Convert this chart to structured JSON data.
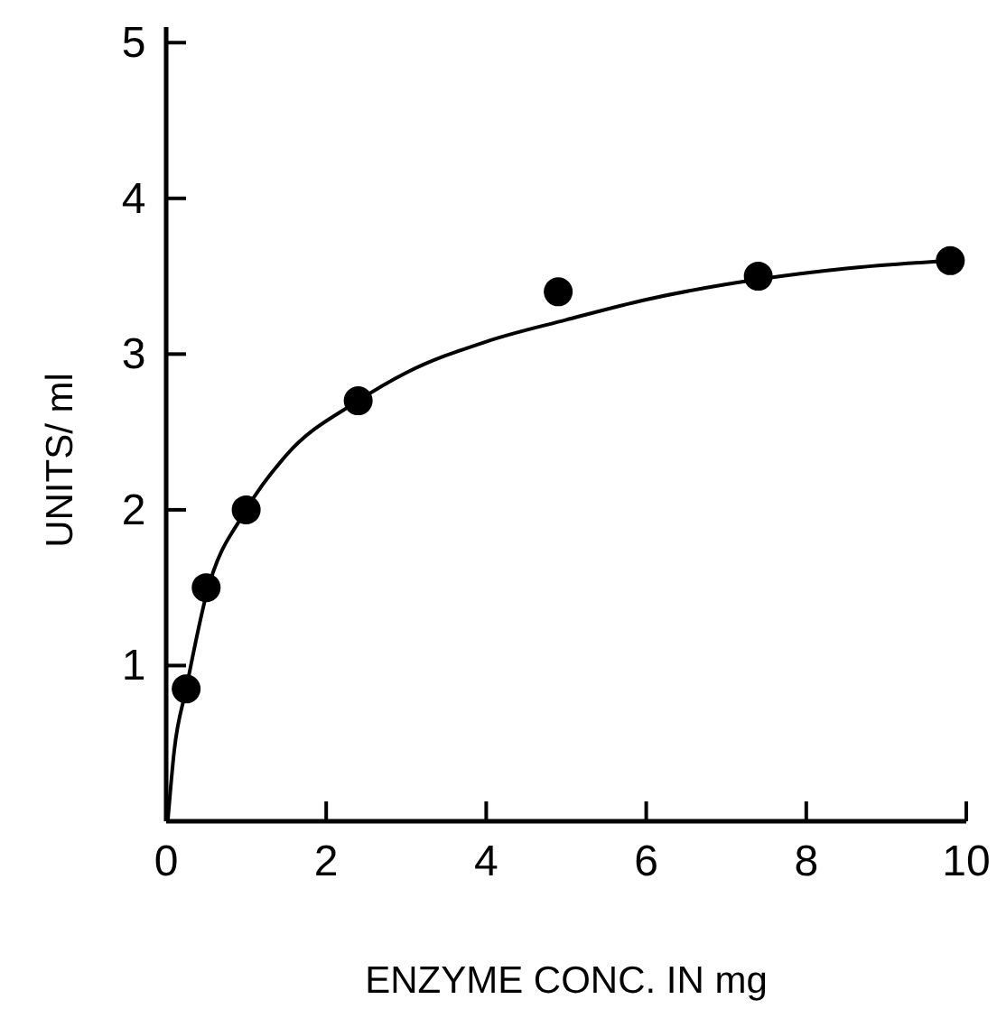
{
  "chart_data": {
    "type": "scatter",
    "xlabel": "ENZYME CONC. IN mg",
    "ylabel": "UNITS/ ml",
    "xlim": [
      0,
      10
    ],
    "ylim": [
      0,
      5.1
    ],
    "xticks": [
      0,
      2,
      4,
      6,
      8,
      10
    ],
    "yticks": [
      {
        "value": 0,
        "label": null
      },
      1,
      2,
      3,
      4,
      5
    ],
    "grid": false,
    "series": [
      {
        "color": "#000000",
        "marker": "circle",
        "x": [
          0.25,
          0.5,
          1,
          2.4,
          4.9,
          7.4,
          9.8
        ],
        "values": [
          0.85,
          1.5,
          2.0,
          2.7,
          3.4,
          3.5,
          3.6
        ]
      },
      {
        "type": "line",
        "color": "#000000",
        "line_style": "solid",
        "x": [
          0.02,
          0.1,
          0.25,
          0.5,
          1,
          1.5,
          2.4,
          3,
          4,
          5,
          6,
          7.4,
          8.5,
          9.8
        ],
        "values": [
          0,
          0.45,
          0.85,
          1.45,
          2.0,
          2.35,
          2.7,
          2.88,
          3.08,
          3.22,
          3.35,
          3.48,
          3.55,
          3.6
        ]
      }
    ]
  }
}
